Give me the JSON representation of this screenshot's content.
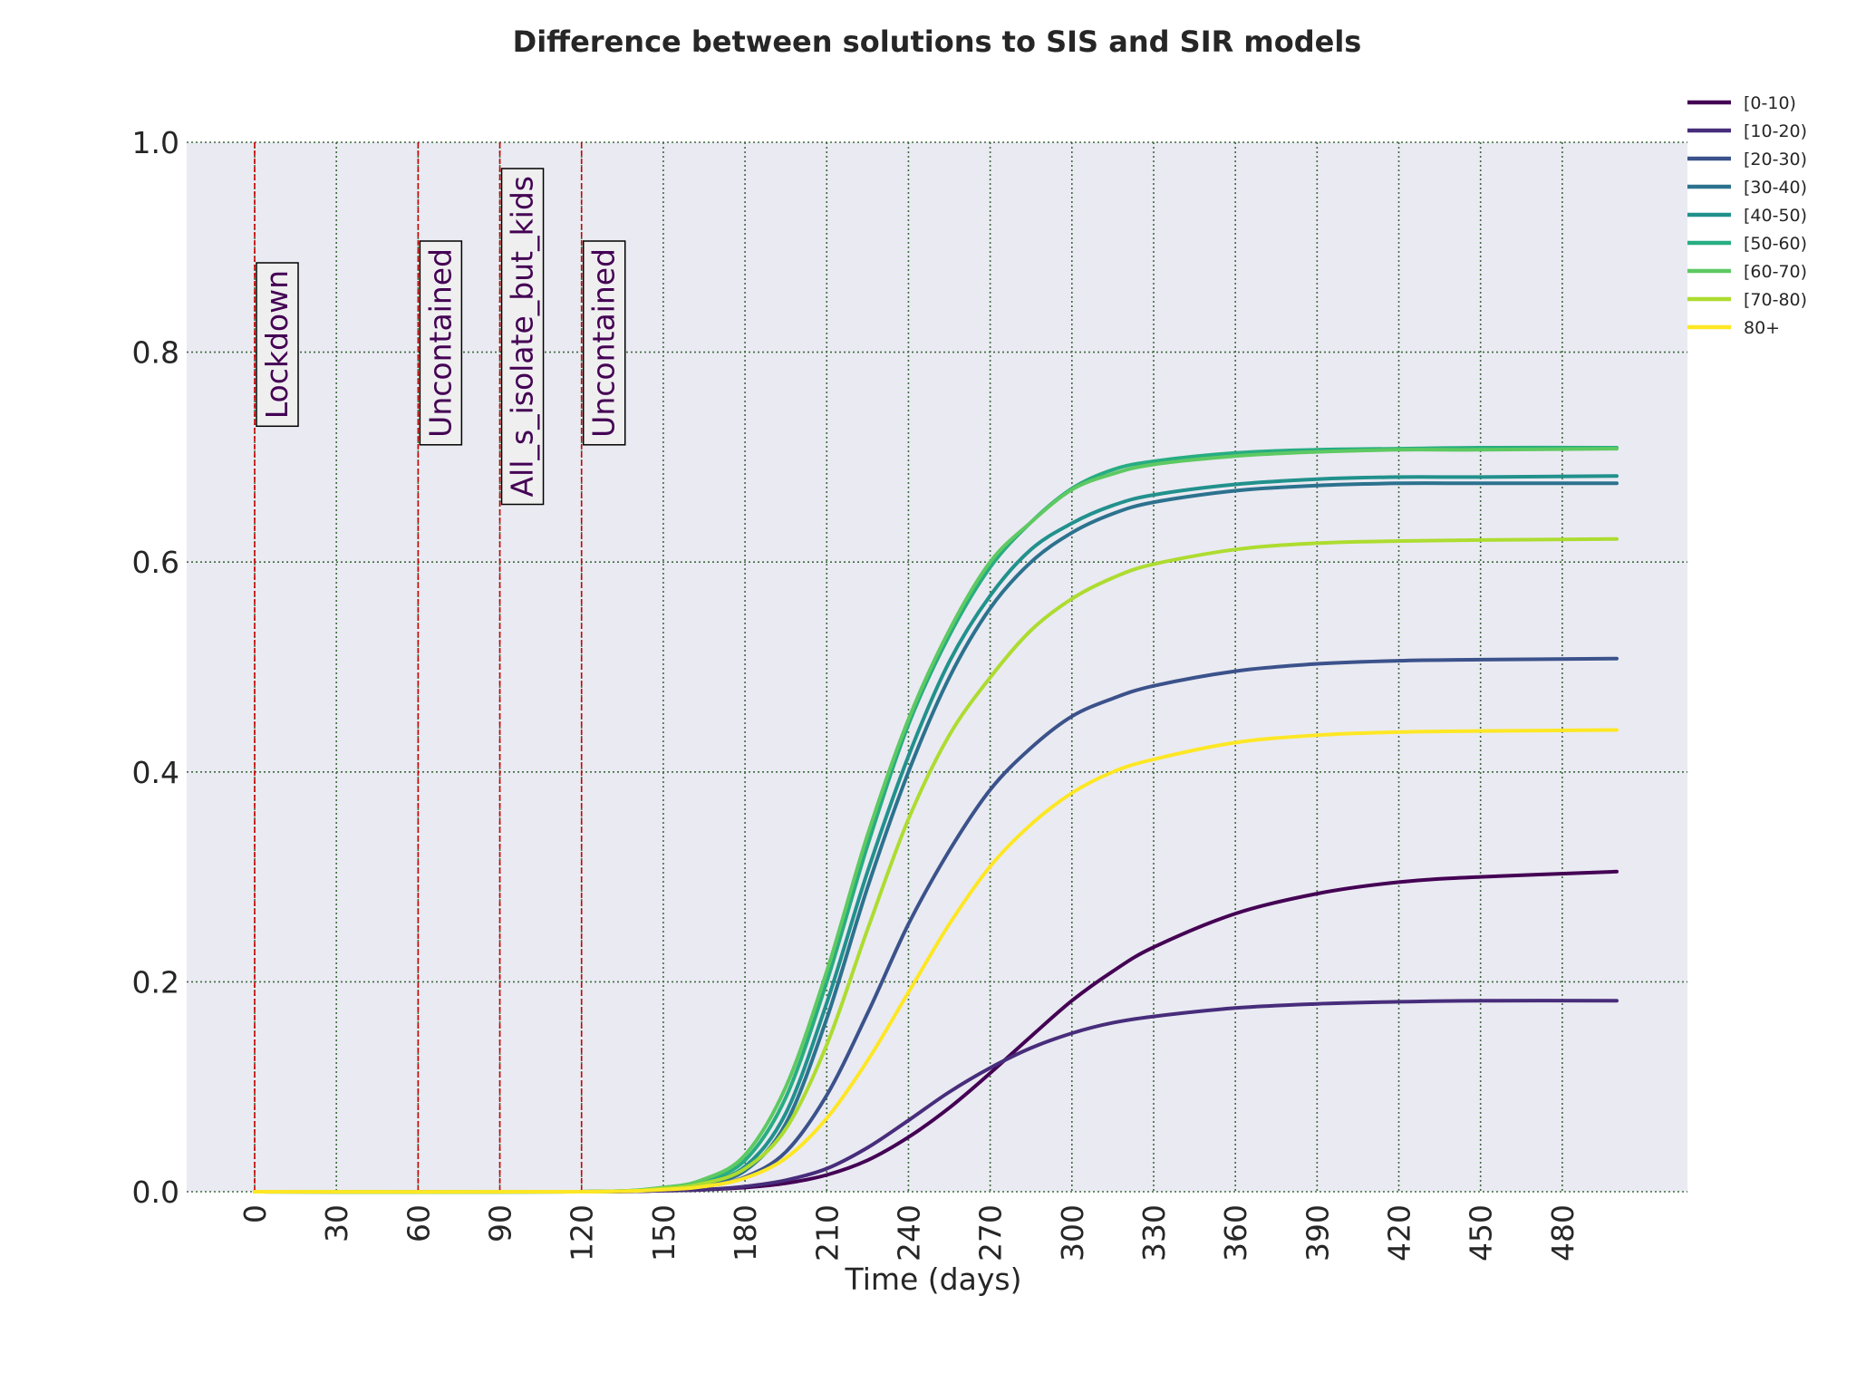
{
  "chart_data": {
    "type": "line",
    "title": "Difference between solutions to SIS and SIR models",
    "xlabel": "Time (days)",
    "ylabel": "",
    "xlim": [
      -12,
      520
    ],
    "ylim": [
      0,
      1
    ],
    "x_ticks": [
      0,
      30,
      60,
      90,
      120,
      150,
      180,
      210,
      240,
      270,
      300,
      330,
      360,
      390,
      420,
      450,
      480
    ],
    "y_ticks": [
      "0.0",
      "0.2",
      "0.4",
      "0.6",
      "0.8",
      "1.0"
    ],
    "grid": true,
    "legend_position": "top-right outside",
    "annotations": [
      {
        "x": 0,
        "label": "Lockdown",
        "color": "#cc0000"
      },
      {
        "x": 60,
        "label": "Uncontained",
        "color": "#cc0000"
      },
      {
        "x": 90,
        "label": "All_s_isolate_but_kids",
        "color": "#cc0000"
      },
      {
        "x": 120,
        "label": "Uncontained",
        "color": "#cc0000"
      }
    ],
    "x": [
      0,
      120,
      150,
      165,
      180,
      195,
      210,
      225,
      240,
      255,
      270,
      285,
      300,
      315,
      330,
      360,
      390,
      420,
      450,
      500
    ],
    "series": [
      {
        "name": "[0-10)",
        "color": "#440154",
        "values": [
          0,
          0,
          0.001,
          0.002,
          0.004,
          0.008,
          0.016,
          0.03,
          0.052,
          0.08,
          0.113,
          0.148,
          0.182,
          0.21,
          0.233,
          0.265,
          0.284,
          0.295,
          0.3,
          0.305
        ]
      },
      {
        "name": "[10-20)",
        "color": "#472d7b",
        "values": [
          0,
          0,
          0.001,
          0.002,
          0.005,
          0.011,
          0.022,
          0.042,
          0.068,
          0.095,
          0.118,
          0.137,
          0.151,
          0.161,
          0.167,
          0.175,
          0.179,
          0.181,
          0.182,
          0.182
        ]
      },
      {
        "name": "[20-30)",
        "color": "#3b528b",
        "values": [
          0,
          0,
          0.002,
          0.005,
          0.014,
          0.038,
          0.092,
          0.17,
          0.255,
          0.325,
          0.383,
          0.423,
          0.453,
          0.47,
          0.482,
          0.496,
          0.503,
          0.506,
          0.507,
          0.508
        ]
      },
      {
        "name": "[30-40)",
        "color": "#2c728e",
        "values": [
          0,
          0,
          0.003,
          0.008,
          0.02,
          0.065,
          0.165,
          0.29,
          0.4,
          0.49,
          0.556,
          0.6,
          0.628,
          0.646,
          0.657,
          0.668,
          0.673,
          0.675,
          0.675,
          0.675
        ]
      },
      {
        "name": "[40-50)",
        "color": "#21918c",
        "values": [
          0,
          0,
          0.003,
          0.009,
          0.024,
          0.075,
          0.18,
          0.305,
          0.415,
          0.505,
          0.568,
          0.612,
          0.637,
          0.654,
          0.664,
          0.674,
          0.679,
          0.681,
          0.681,
          0.682
        ]
      },
      {
        "name": "[50-60)",
        "color": "#27ad81",
        "values": [
          0,
          0,
          0.004,
          0.011,
          0.03,
          0.09,
          0.2,
          0.33,
          0.445,
          0.53,
          0.595,
          0.638,
          0.67,
          0.688,
          0.696,
          0.704,
          0.707,
          0.708,
          0.709,
          0.709
        ]
      },
      {
        "name": "[60-70)",
        "color": "#5ec962",
        "values": [
          0,
          0,
          0.004,
          0.012,
          0.035,
          0.1,
          0.21,
          0.34,
          0.45,
          0.535,
          0.6,
          0.638,
          0.669,
          0.684,
          0.693,
          0.701,
          0.705,
          0.707,
          0.707,
          0.708
        ]
      },
      {
        "name": "[70-80)",
        "color": "#addc30",
        "values": [
          0,
          0,
          0.003,
          0.008,
          0.022,
          0.06,
          0.14,
          0.25,
          0.355,
          0.435,
          0.49,
          0.535,
          0.565,
          0.585,
          0.598,
          0.612,
          0.618,
          0.62,
          0.621,
          0.622
        ]
      },
      {
        "name": "80+",
        "color": "#fde725",
        "values": [
          0,
          0,
          0.002,
          0.005,
          0.013,
          0.032,
          0.07,
          0.125,
          0.19,
          0.255,
          0.31,
          0.35,
          0.38,
          0.4,
          0.412,
          0.428,
          0.435,
          0.438,
          0.439,
          0.44
        ]
      }
    ]
  }
}
